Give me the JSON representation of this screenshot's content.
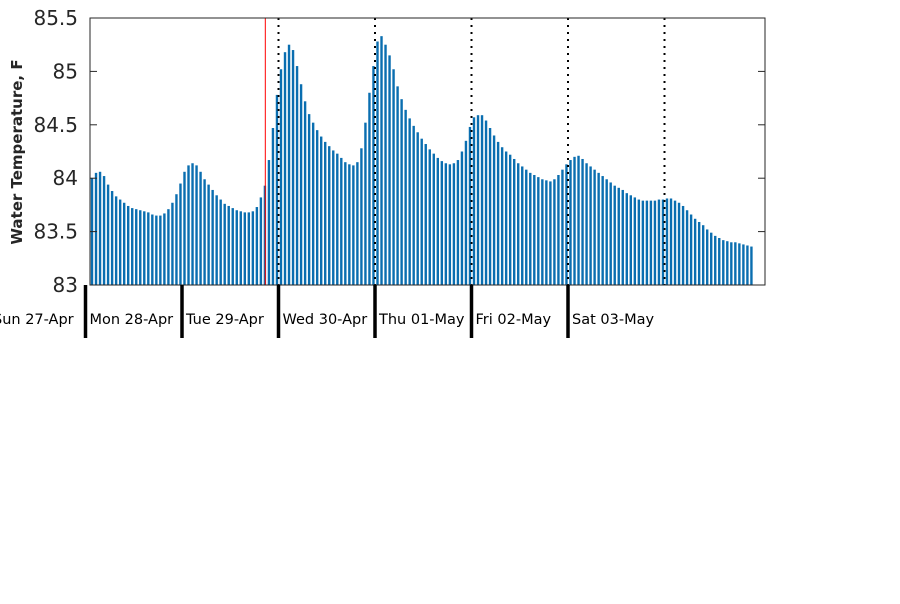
{
  "chart_data": {
    "type": "bar",
    "ylabel": "Water Temperature, F",
    "xlabel": "",
    "ylim": [
      83,
      85.5
    ],
    "y_ticks": [
      "83",
      "83.5",
      "84",
      "84.5",
      "85",
      "85.5"
    ],
    "grid": false,
    "bar_color": "#0a6eb0",
    "marker_color": "#ff0000",
    "day_labels": [
      "Sun 27-Apr",
      "Mon 28-Apr",
      "Tue 29-Apr",
      "Wed 30-Apr",
      "Thu 01-May",
      "Fri 02-May",
      "Sat 03-May"
    ],
    "values": [
      84.0,
      84.05,
      84.06,
      84.02,
      83.94,
      83.88,
      83.83,
      83.8,
      83.77,
      83.74,
      83.72,
      83.71,
      83.7,
      83.69,
      83.68,
      83.66,
      83.65,
      83.65,
      83.67,
      83.71,
      83.77,
      83.85,
      83.95,
      84.06,
      84.12,
      84.14,
      84.12,
      84.06,
      83.99,
      83.94,
      83.89,
      83.84,
      83.8,
      83.76,
      83.74,
      83.72,
      83.7,
      83.69,
      83.68,
      83.68,
      83.69,
      83.73,
      83.82,
      83.93,
      84.17,
      84.47,
      84.78,
      85.02,
      85.18,
      85.25,
      85.2,
      85.05,
      84.88,
      84.72,
      84.6,
      84.52,
      84.45,
      84.39,
      84.34,
      84.3,
      84.26,
      84.23,
      84.19,
      84.15,
      84.13,
      84.12,
      84.15,
      84.28,
      84.52,
      84.8,
      85.05,
      85.28,
      85.33,
      85.25,
      85.15,
      85.02,
      84.86,
      84.74,
      84.64,
      84.56,
      84.49,
      84.43,
      84.37,
      84.32,
      84.27,
      84.23,
      84.19,
      84.16,
      84.14,
      84.13,
      84.14,
      84.17,
      84.25,
      84.35,
      84.48,
      84.57,
      84.59,
      84.59,
      84.54,
      84.47,
      84.4,
      84.34,
      84.29,
      84.25,
      84.22,
      84.18,
      84.14,
      84.11,
      84.08,
      84.05,
      84.03,
      84.01,
      83.99,
      83.98,
      83.97,
      83.99,
      84.03,
      84.08,
      84.13,
      84.17,
      84.2,
      84.21,
      84.18,
      84.14,
      84.11,
      84.08,
      84.05,
      84.02,
      83.99,
      83.96,
      83.93,
      83.91,
      83.89,
      83.86,
      83.84,
      83.82,
      83.8,
      83.79,
      83.79,
      83.79,
      83.79,
      83.8,
      83.8,
      83.81,
      83.81,
      83.79,
      83.77,
      83.74,
      83.7,
      83.66,
      83.62,
      83.59,
      83.56,
      83.52,
      83.49,
      83.46,
      83.44,
      83.42,
      83.41,
      83.4,
      83.4,
      83.39,
      83.38,
      83.37,
      83.36
    ]
  }
}
